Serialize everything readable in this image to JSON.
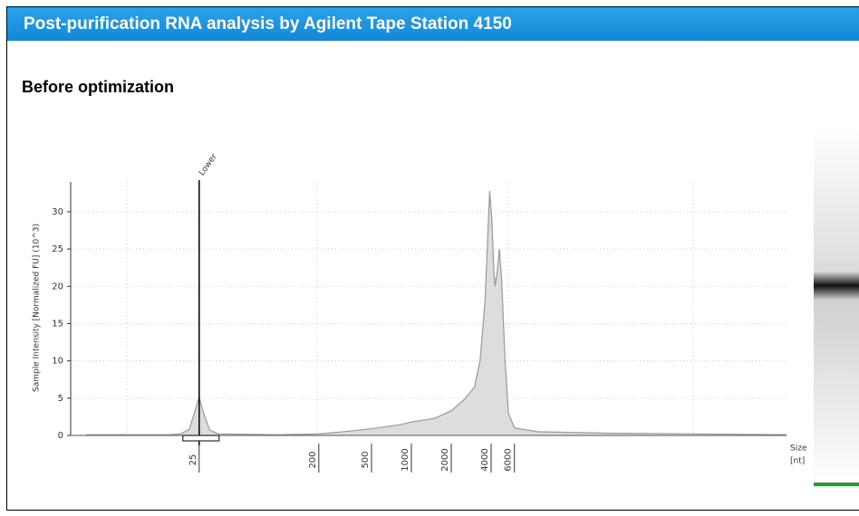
{
  "header": {
    "title": "Post-purification RNA analysis by Agilent Tape Station 4150"
  },
  "subtitle": "Before optimization",
  "chart_data": {
    "type": "line",
    "y_label": "Sample Intensity [Normalized FU] (10^3)",
    "x_label": [
      "Size",
      "[nt]"
    ],
    "log_x": true,
    "xlim": [
      3.5,
      680000
    ],
    "xticks": [
      25,
      200,
      500,
      1000,
      2000,
      4000,
      6000
    ],
    "ylim": [
      0,
      34
    ],
    "yticks": [
      0,
      5,
      10,
      15,
      20,
      25,
      30
    ],
    "grid": true,
    "color": "#999999",
    "fill": "#dddddd",
    "x": [
      3.5,
      15,
      18,
      21,
      23,
      25,
      27,
      30,
      35,
      100,
      200,
      350,
      500,
      800,
      1000,
      1500,
      2000,
      2500,
      3000,
      3300,
      3600,
      3800,
      3900,
      4050,
      4200,
      4280,
      4450,
      4620,
      4800,
      5100,
      5400,
      6000,
      9000,
      30000,
      680000
    ],
    "values": [
      0.1,
      0.1,
      0.2,
      0.8,
      3,
      5.1,
      3,
      0.7,
      0.2,
      0.1,
      0.2,
      0.6,
      0.9,
      1.4,
      1.8,
      2.3,
      3.3,
      4.8,
      6.5,
      10,
      18,
      28,
      32.8,
      29,
      22,
      20,
      22,
      25,
      21,
      10,
      3,
      1,
      0.5,
      0.3,
      0.1
    ],
    "markers": [
      {
        "label": "Lower",
        "x": 25
      }
    ]
  }
}
